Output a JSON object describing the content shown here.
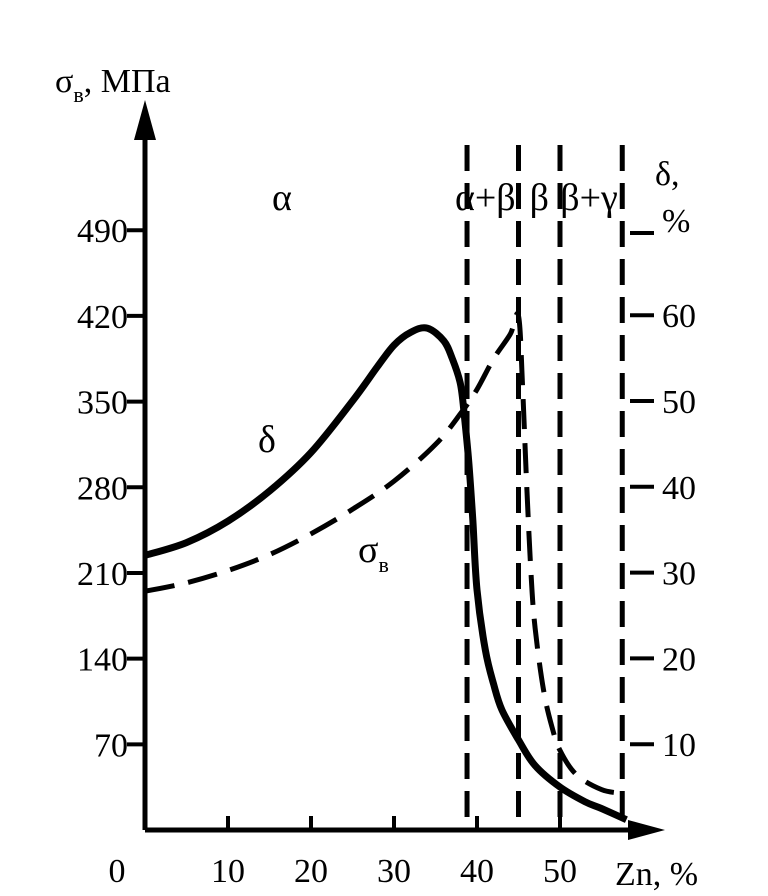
{
  "chart_data": {
    "type": "line",
    "ylabel_left": {
      "symbol": "σ",
      "subscript": "в",
      "unit": ", МПа"
    },
    "ylabel_right": {
      "line1": "δ,",
      "line2": "%"
    },
    "xlabel": "Zn, %",
    "x_ticks": [
      {
        "value": 0,
        "label": "0"
      },
      {
        "value": 10,
        "label": "10"
      },
      {
        "value": 20,
        "label": "20"
      },
      {
        "value": 30,
        "label": "30"
      },
      {
        "value": 40,
        "label": "40"
      },
      {
        "value": 50,
        "label": "50"
      }
    ],
    "x_range": [
      0,
      58
    ],
    "y_left_ticks": [
      70,
      140,
      210,
      280,
      350,
      420,
      490
    ],
    "y_left_range": [
      0,
      560
    ],
    "y_right_ticks": [
      10,
      20,
      30,
      40,
      50,
      60
    ],
    "y_right_range": [
      0,
      60
    ],
    "phase_boundaries": [
      38.8,
      45.0,
      50.0,
      57.5
    ],
    "phase_labels": [
      {
        "text": "α",
        "x": 16.5
      },
      {
        "text": "α+β",
        "x": 41.0
      },
      {
        "text": "β",
        "x": 47.5
      },
      {
        "text": "β+γ",
        "x": 53.5
      }
    ],
    "series": [
      {
        "name": "δ",
        "axis": "right",
        "style": "solid",
        "x": [
          0,
          5,
          10,
          15,
          20,
          25,
          28,
          30,
          32,
          34,
          36,
          37,
          38,
          38.5,
          39,
          39.5,
          40,
          41,
          42,
          43,
          45,
          47,
          50,
          53,
          55,
          58
        ],
        "y": [
          32,
          33.5,
          36,
          39.5,
          44,
          50,
          54,
          56.5,
          58,
          58.5,
          57,
          55,
          52,
          48,
          43,
          36,
          28,
          21,
          17,
          14,
          10.5,
          7.5,
          5,
          3.3,
          2.5,
          1.2
        ]
      },
      {
        "name": "σв",
        "axis": "left",
        "style": "dashed",
        "x": [
          0,
          5,
          10,
          15,
          20,
          25,
          30,
          35,
          38,
          40,
          42,
          44,
          45,
          45.5,
          46,
          46.5,
          47,
          48,
          49,
          50,
          52,
          55,
          57.5
        ],
        "y": [
          195,
          202,
          212,
          225,
          242,
          262,
          285,
          315,
          340,
          360,
          385,
          405,
          420,
          360,
          280,
          210,
          165,
          115,
          85,
          65,
          45,
          33,
          30
        ]
      }
    ],
    "curve_labels": [
      {
        "series": "δ",
        "symbol": "δ",
        "subscript": ""
      },
      {
        "series": "σв",
        "symbol": "σ",
        "subscript": "в"
      }
    ]
  }
}
